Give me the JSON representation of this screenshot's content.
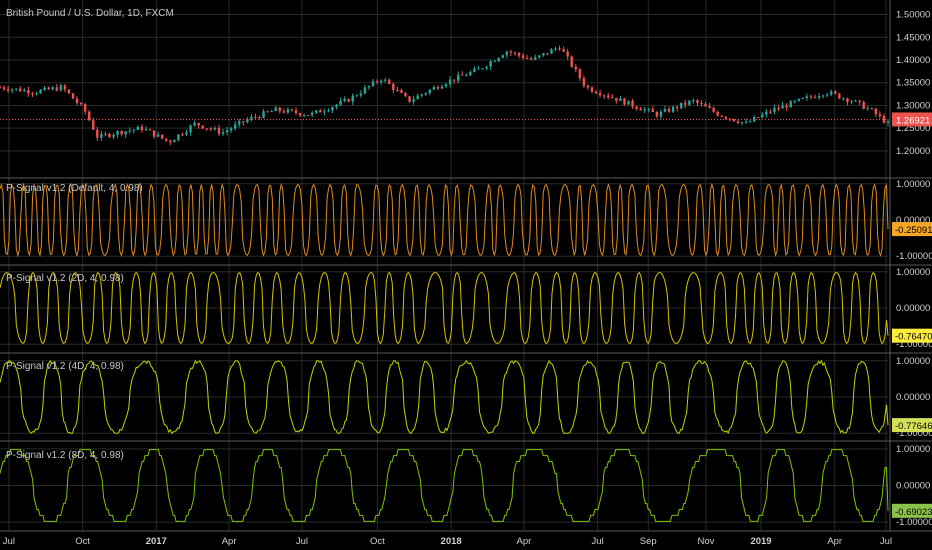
{
  "chart_data": [
    {
      "type": "candlestick",
      "title": "British Pound / U.S. Dollar, 1D, FXCM",
      "yticks": [
        "1.50000",
        "1.45000",
        "1.40000",
        "1.35000",
        "1.30000",
        "1.25000",
        "1.20000"
      ],
      "ylim": [
        1.18,
        1.51
      ],
      "last_value": "1.26921",
      "last_color": "#ef5350",
      "up_color": "#26a69a",
      "down_color": "#ef5350",
      "close_path": [
        {
          "t": 0.0,
          "v": 1.34
        },
        {
          "t": 0.04,
          "v": 1.33
        },
        {
          "t": 0.07,
          "v": 1.34
        },
        {
          "t": 0.095,
          "v": 1.29
        },
        {
          "t": 0.11,
          "v": 1.23
        },
        {
          "t": 0.13,
          "v": 1.24
        },
        {
          "t": 0.16,
          "v": 1.25
        },
        {
          "t": 0.19,
          "v": 1.22
        },
        {
          "t": 0.22,
          "v": 1.26
        },
        {
          "t": 0.25,
          "v": 1.24
        },
        {
          "t": 0.28,
          "v": 1.27
        },
        {
          "t": 0.31,
          "v": 1.29
        },
        {
          "t": 0.35,
          "v": 1.28
        },
        {
          "t": 0.39,
          "v": 1.31
        },
        {
          "t": 0.43,
          "v": 1.36
        },
        {
          "t": 0.46,
          "v": 1.31
        },
        {
          "t": 0.5,
          "v": 1.35
        },
        {
          "t": 0.54,
          "v": 1.38
        },
        {
          "t": 0.57,
          "v": 1.42
        },
        {
          "t": 0.6,
          "v": 1.4
        },
        {
          "t": 0.63,
          "v": 1.43
        },
        {
          "t": 0.66,
          "v": 1.34
        },
        {
          "t": 0.7,
          "v": 1.31
        },
        {
          "t": 0.74,
          "v": 1.28
        },
        {
          "t": 0.78,
          "v": 1.31
        },
        {
          "t": 0.81,
          "v": 1.28
        },
        {
          "t": 0.84,
          "v": 1.26
        },
        {
          "t": 0.87,
          "v": 1.29
        },
        {
          "t": 0.9,
          "v": 1.31
        },
        {
          "t": 0.93,
          "v": 1.33
        },
        {
          "t": 0.96,
          "v": 1.31
        },
        {
          "t": 0.98,
          "v": 1.29
        },
        {
          "t": 1.0,
          "v": 1.26
        }
      ]
    },
    {
      "type": "line",
      "title": "P-Signal v1.2 (Default, 4, 0.98)",
      "yticks": [
        "1.00000",
        "0.00000",
        "-1.00000"
      ],
      "ylim": [
        -1.05,
        1.05
      ],
      "last_value": "-0.25091",
      "line_color": "#e08a1e",
      "badge_bg": "#f5a623",
      "badge_fg": "#000000",
      "cycles": 62,
      "shape": "sharp"
    },
    {
      "type": "line",
      "title": "P-Signal v1.2 (2D, 4, 0.98)",
      "yticks": [
        "1.00000",
        "0.00000",
        "-1.00000"
      ],
      "ylim": [
        -1.05,
        1.05
      ],
      "last_value": "-0.76470",
      "line_color": "#d4c400",
      "badge_bg": "#ffeb3b",
      "badge_fg": "#000000",
      "cycles": 38,
      "shape": "sharp"
    },
    {
      "type": "line",
      "title": "P-Signal v1.2 (4D, 4, 0.98)",
      "yticks": [
        "1.00000",
        "0.00000",
        "-1.00000"
      ],
      "ylim": [
        -1.05,
        1.05
      ],
      "last_value": "-0.77646",
      "line_color": "#c0d400",
      "badge_bg": "#d4e157",
      "badge_fg": "#000000",
      "cycles": 22,
      "shape": "choppy"
    },
    {
      "type": "line",
      "title": "P-Signal v1.2 (8D, 4, 0.98)",
      "yticks": [
        "1.00000",
        "0.00000",
        "-1.00000"
      ],
      "ylim": [
        -1.05,
        1.05
      ],
      "last_value": "-0.69023",
      "line_color": "#7cc400",
      "badge_bg": "#8bc34a",
      "badge_fg": "#000000",
      "cycles": 12,
      "shape": "steps"
    }
  ],
  "x_axis": {
    "ticks": [
      {
        "label": "Jul",
        "t": 0.01,
        "major": false
      },
      {
        "label": "Oct",
        "t": 0.093,
        "major": false
      },
      {
        "label": "2017",
        "t": 0.176,
        "major": true
      },
      {
        "label": "Apr",
        "t": 0.258,
        "major": false
      },
      {
        "label": "Jul",
        "t": 0.34,
        "major": false
      },
      {
        "label": "Oct",
        "t": 0.425,
        "major": false
      },
      {
        "label": "2018",
        "t": 0.508,
        "major": true
      },
      {
        "label": "Apr",
        "t": 0.59,
        "major": false
      },
      {
        "label": "Jul",
        "t": 0.673,
        "major": false
      },
      {
        "label": "Sep",
        "t": 0.73,
        "major": false
      },
      {
        "label": "Nov",
        "t": 0.795,
        "major": false
      },
      {
        "label": "2019",
        "t": 0.857,
        "major": true
      },
      {
        "label": "Apr",
        "t": 0.94,
        "major": false
      },
      {
        "label": "Jul",
        "t": 1.0,
        "major": false
      }
    ]
  },
  "colors": {
    "background": "#000000",
    "grid": "#2a2a2a",
    "separator": "#5a5a5a",
    "text": "#c8c8c8"
  }
}
